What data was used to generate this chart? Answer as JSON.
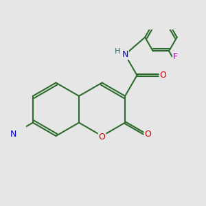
{
  "background_color": "#e6e6e6",
  "bond_color": "#2d6b2d",
  "bond_width": 1.5,
  "atom_colors": {
    "O": "#cc0000",
    "N": "#0000cc",
    "F": "#cc00cc",
    "H": "#336666",
    "C": "#2d6b2d"
  },
  "figsize": [
    3.0,
    3.0
  ],
  "dpi": 100
}
